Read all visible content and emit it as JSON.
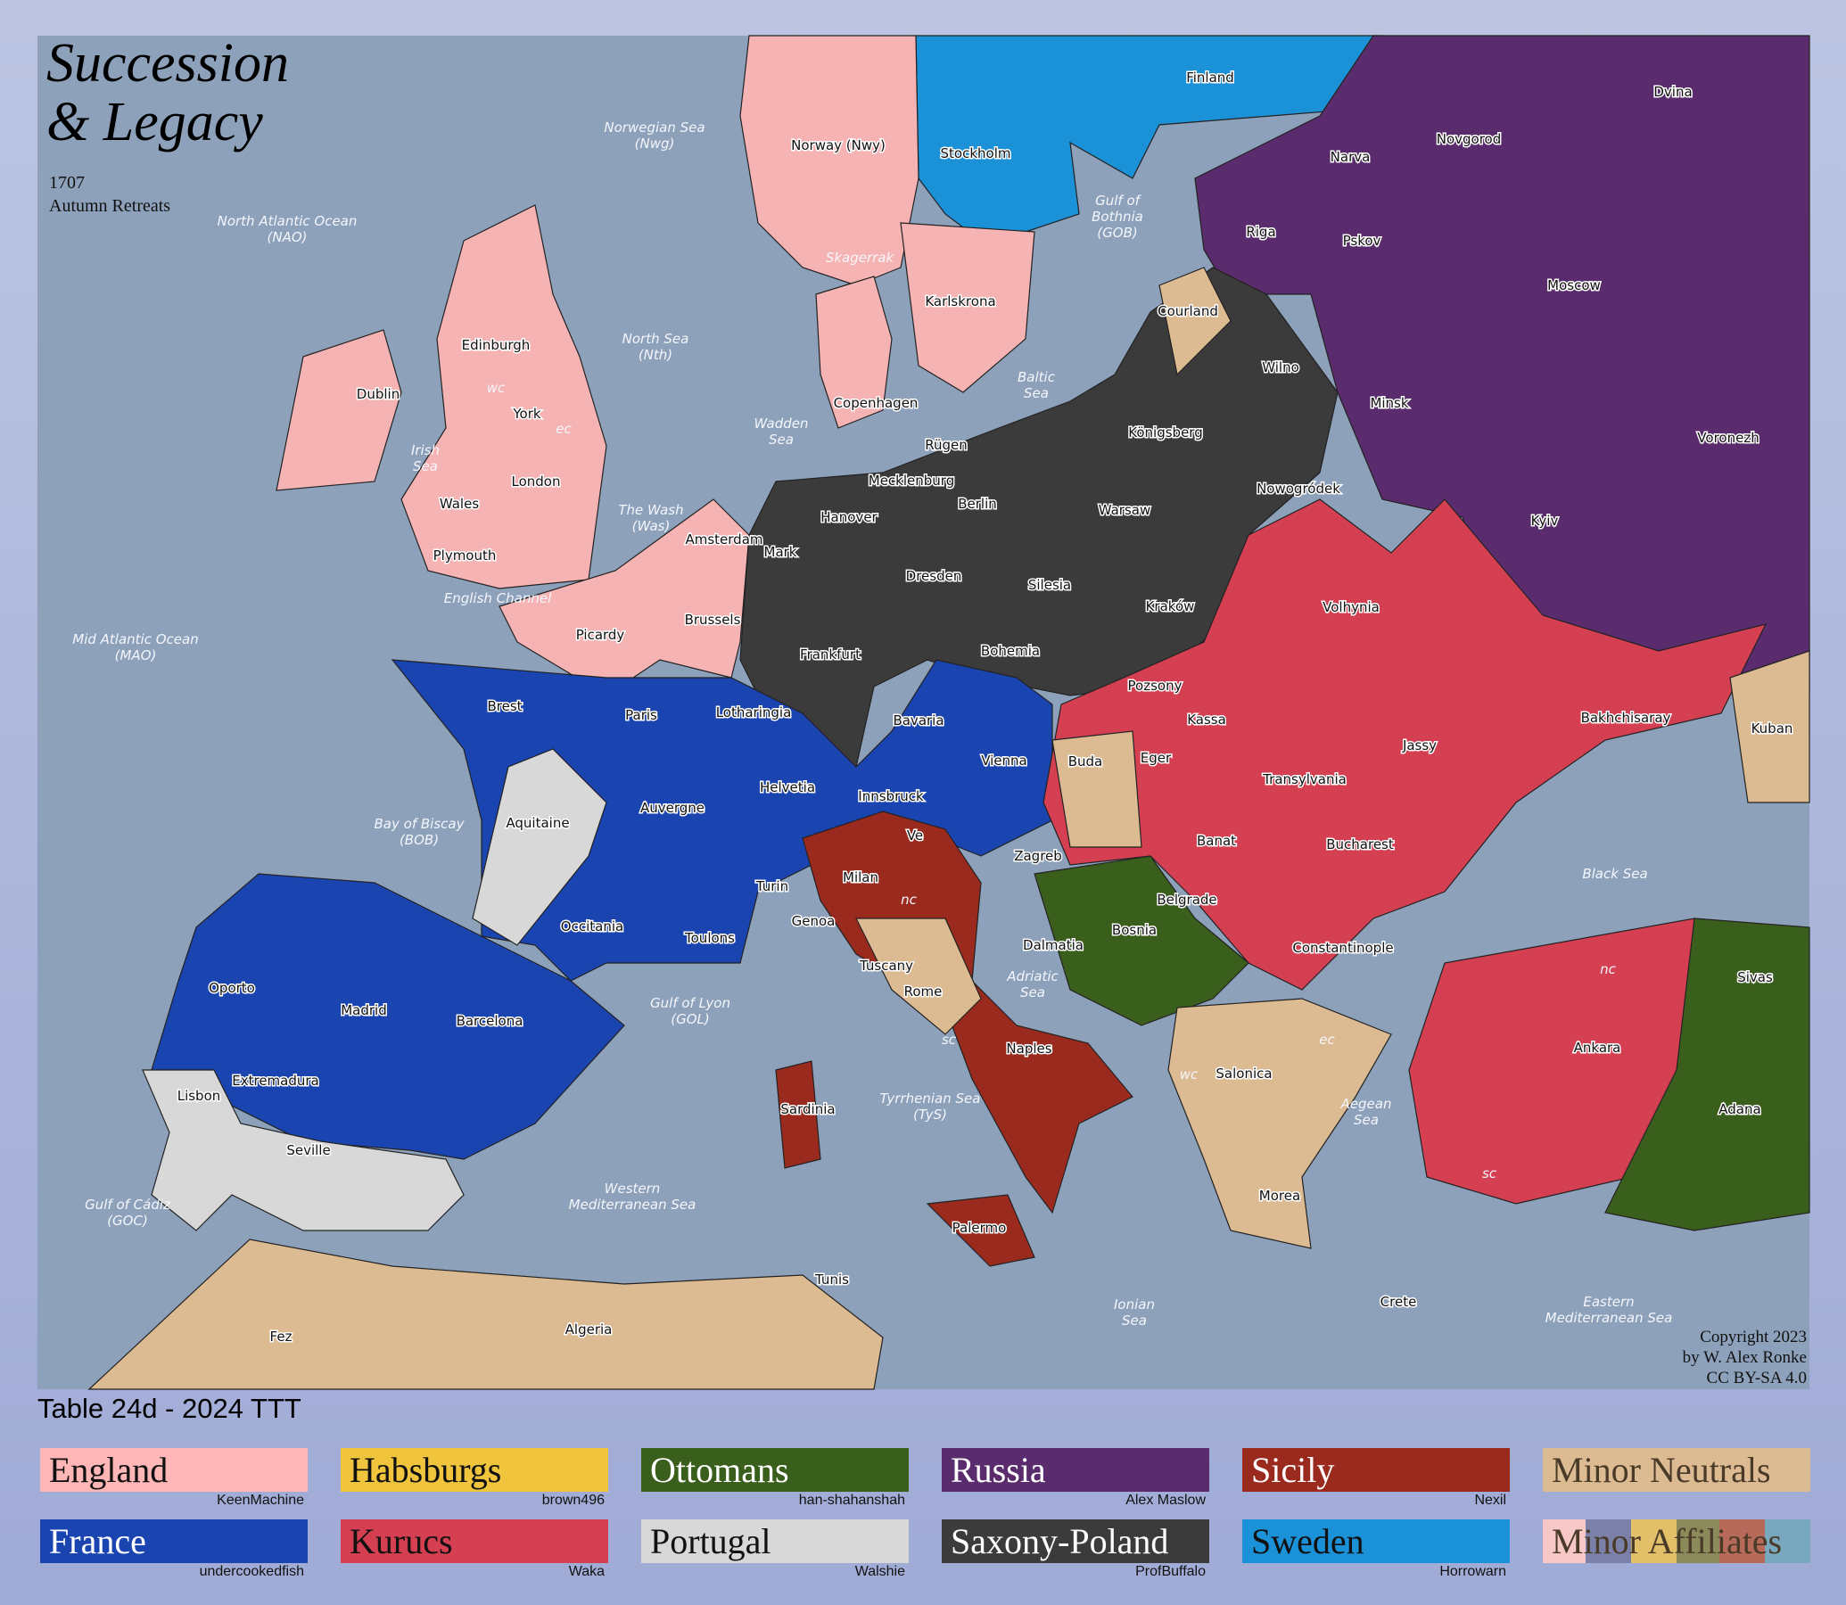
{
  "title": {
    "line1": "Succession",
    "line2": "& Legacy",
    "year": "1707",
    "phase": "Autumn Retreats"
  },
  "copyright": {
    "line1": "Copyright 2023",
    "line2": "by W. Alex Ronke",
    "line3": "CC BY-SA 4.0"
  },
  "table_label": "Table 24d - 2024 TTT",
  "colors": {
    "sea": "#8da1bb",
    "england": "#f6b3b3",
    "habsburgs": "#efc43c",
    "ottomans": "#3a5e1c",
    "russia": "#5a2c6e",
    "sicily": "#9a2a1e",
    "minor_neutrals": "#dcbb92",
    "france": "#1a44b0",
    "kurucs": "#d44052",
    "portugal": "#d8d8d8",
    "saxony_poland": "#3b3b3b",
    "sweden": "#1b92d8"
  },
  "legend": [
    {
      "name": "England",
      "player": "KeenMachine",
      "color": "#ffb6b6",
      "text": "#111"
    },
    {
      "name": "Habsburgs",
      "player": "brown496",
      "color": "#f0c43c",
      "text": "#111"
    },
    {
      "name": "Ottomans",
      "player": "han-shahanshah",
      "color": "#3a5e1c",
      "text": "#fff"
    },
    {
      "name": "Russia",
      "player": "Alex Maslow",
      "color": "#5a2c6e",
      "text": "#fff"
    },
    {
      "name": "Sicily",
      "player": "Nexil",
      "color": "#9a2a1e",
      "text": "#fff"
    },
    {
      "name": "Minor Neutrals",
      "player": "",
      "color": "#dcbb92",
      "text": "#4a3a28"
    },
    {
      "name": "France",
      "player": "undercookedfish",
      "color": "#1a44b0",
      "text": "#fff"
    },
    {
      "name": "Kurucs",
      "player": "Waka",
      "color": "#d44052",
      "text": "#111"
    },
    {
      "name": "Portugal",
      "player": "Walshie",
      "color": "#d8d8d8",
      "text": "#111"
    },
    {
      "name": "Saxony-Poland",
      "player": "ProfBuffalo",
      "color": "#3b3b3b",
      "text": "#fff"
    },
    {
      "name": "Sweden",
      "player": "Horrowarn",
      "color": "#1b92d8",
      "text": "#111"
    },
    {
      "name": "Minor Affiliates",
      "player": "",
      "color": "linear-gradient(90deg,#f6c8c8 0 16%,#7a80a8 16% 33%,#e2c06a 33% 50%,#8a8a5a 50% 66%,#b86a5a 66% 83%,#78a8c0 83%)",
      "text": "#4a3a28"
    }
  ],
  "map": {
    "land_labels": [
      "Norway (Nwy)",
      "Stockholm",
      "Finland",
      "Dvina",
      "Novgorod",
      "Narva",
      "Pskov",
      "Riga",
      "Karlskrona",
      "Moscow",
      "Courland",
      "Edinburgh",
      "Wilno",
      "Minsk",
      "Dublin",
      "Copenhagen",
      "Königsberg",
      "Voronezh",
      "York",
      "Rügen",
      "Mecklenburg",
      "London",
      "Nowogródek",
      "Wales",
      "Berlin",
      "Hanover",
      "Warsaw",
      "Kyiv",
      "Amsterdam",
      "Mark",
      "Plymouth",
      "Dresden",
      "Silesia",
      "Volhynia",
      "Kraków",
      "Brussels",
      "Picardy",
      "Frankfurt",
      "Bohemia",
      "Pozsony",
      "Brest",
      "Paris",
      "Lotharingia",
      "Bavaria",
      "Kassa",
      "Bakhchisaray",
      "Kuban",
      "Jassy",
      "Eger",
      "Vienna",
      "Buda",
      "Transylvania",
      "Helvetia",
      "Innsbruck",
      "Auvergne",
      "Aquitaine",
      "Banat",
      "Bucharest",
      "Ve",
      "Zagreb",
      "Milan",
      "Turin",
      "Belgrade",
      "Genoa",
      "Occitania",
      "Bosnia",
      "Toulons",
      "Dalmatia",
      "Constantinople",
      "Tuscany",
      "Oporto",
      "Rome",
      "Sivas",
      "Madrid",
      "Barcelona",
      "Naples",
      "Ankara",
      "Salonica",
      "Extremadura",
      "Lisbon",
      "Sardinia",
      "Adana",
      "Seville",
      "Morea",
      "Palermo",
      "Tunis",
      "Crete",
      "Algeria",
      "Fez"
    ],
    "sea_labels": [
      "Norwegian Sea|(Nwg)",
      "North Atlantic Ocean|(NAO)",
      "Gulf of|Bothnia|(GOB)",
      "Skagerrak",
      "North Sea|(Nth)",
      "Baltic|Sea",
      "Irish|Sea",
      "Wadden|Sea",
      "The Wash|(Was)",
      "English Channel",
      "Mid Atlantic Ocean|(MAO)",
      "Bay of Biscay|(BOB)",
      "Black Sea",
      "Adriatic|Sea",
      "Gulf of Lyon|(GOL)",
      "Tyrrhenian Sea|(TyS)",
      "Aegean|Sea",
      "Western|Mediterranean Sea",
      "Gulf of Cádiz|(GOC)",
      "Ionian|Sea",
      "Eastern|Mediterranean Sea"
    ],
    "coast_labels": [
      "wc",
      "ec",
      "nc",
      "sc",
      "nc",
      "ec",
      "wc",
      "sc"
    ]
  }
}
